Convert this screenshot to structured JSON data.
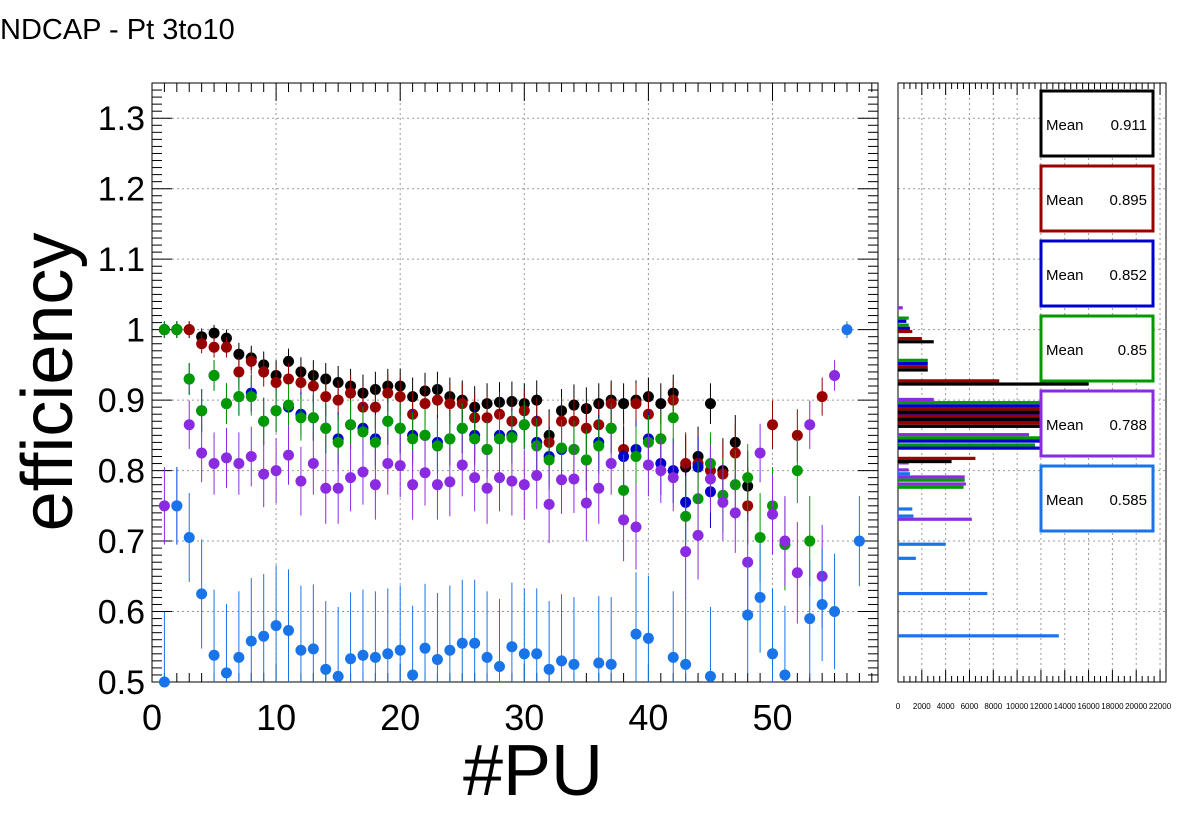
{
  "page": {
    "title": "NDCAP - Pt 3to10"
  },
  "chart_data": {
    "type": "scatter",
    "title": "NDCAP - Pt 3to10",
    "xlabel": "#PU",
    "ylabel": "efficiency",
    "xlim": [
      0,
      58.5
    ],
    "ylim": [
      0.5,
      1.35
    ],
    "xticks": [
      0,
      10,
      20,
      30,
      40,
      50
    ],
    "yticks": [
      0.5,
      0.6,
      0.7,
      0.8,
      0.9,
      1,
      1.1,
      1.2,
      1.3
    ],
    "ytick_labels": [
      "0.5",
      "0.6",
      "0.7",
      "0.8",
      "0.9",
      "1",
      "1.1",
      "1.2",
      "1.3"
    ],
    "grid": true,
    "series": [
      {
        "color": "#000000",
        "mean_label": "Mean",
        "mean": "0.911",
        "x": [
          1,
          2,
          3,
          4,
          5,
          6,
          7,
          8,
          9,
          10,
          11,
          12,
          13,
          14,
          15,
          16,
          17,
          18,
          19,
          20,
          21,
          22,
          23,
          24,
          25,
          26,
          27,
          28,
          29,
          30,
          31,
          32,
          33,
          34,
          35,
          36,
          37,
          38,
          39,
          40,
          41,
          42,
          43,
          44,
          45,
          46,
          47,
          48
        ],
        "y": [
          1.0,
          1.0,
          1.0,
          0.99,
          0.995,
          0.988,
          0.965,
          0.96,
          0.95,
          0.935,
          0.955,
          0.94,
          0.935,
          0.93,
          0.925,
          0.92,
          0.91,
          0.915,
          0.92,
          0.92,
          0.905,
          0.913,
          0.915,
          0.905,
          0.9,
          0.89,
          0.895,
          0.897,
          0.898,
          0.895,
          0.9,
          0.85,
          0.885,
          0.893,
          0.888,
          0.895,
          0.9,
          0.895,
          0.9,
          0.905,
          0.895,
          0.91,
          0.805,
          0.82,
          0.895,
          0.8,
          0.84,
          0.778
        ]
      },
      {
        "color": "#990000",
        "mean_label": "Mean",
        "mean": "0.895",
        "x": [
          1,
          2,
          3,
          4,
          5,
          6,
          7,
          8,
          9,
          10,
          11,
          12,
          13,
          14,
          15,
          16,
          17,
          18,
          19,
          20,
          21,
          22,
          23,
          24,
          25,
          26,
          27,
          28,
          29,
          30,
          31,
          32,
          33,
          34,
          35,
          36,
          37,
          38,
          39,
          40,
          41,
          42,
          43,
          44,
          45,
          46,
          47,
          48,
          50,
          52,
          54
        ],
        "y": [
          1.0,
          1.0,
          1.0,
          0.98,
          0.975,
          0.975,
          0.94,
          0.955,
          0.94,
          0.925,
          0.93,
          0.925,
          0.92,
          0.905,
          0.9,
          0.91,
          0.89,
          0.89,
          0.91,
          0.905,
          0.88,
          0.895,
          0.9,
          0.895,
          0.895,
          0.875,
          0.875,
          0.88,
          0.87,
          0.885,
          0.87,
          0.84,
          0.87,
          0.87,
          0.86,
          0.865,
          0.895,
          0.83,
          0.895,
          0.88,
          0.845,
          0.9,
          0.81,
          0.81,
          0.8,
          0.795,
          0.825,
          0.75,
          0.865,
          0.85,
          0.905
        ]
      },
      {
        "color": "#0000cc",
        "mean_label": "Mean",
        "mean": "0.852",
        "x": [
          1,
          2,
          3,
          4,
          5,
          6,
          7,
          8,
          9,
          10,
          11,
          12,
          13,
          14,
          15,
          16,
          17,
          18,
          19,
          20,
          21,
          22,
          23,
          24,
          25,
          26,
          27,
          28,
          29,
          30,
          31,
          32,
          33,
          34,
          35,
          36,
          37,
          38,
          39,
          40,
          41,
          42,
          43,
          44,
          45
        ],
        "y": [
          1.0,
          1.0,
          0.93,
          0.885,
          0.935,
          0.895,
          0.905,
          0.91,
          0.87,
          0.885,
          0.89,
          0.88,
          0.875,
          0.86,
          0.845,
          0.865,
          0.86,
          0.845,
          0.87,
          0.86,
          0.85,
          0.85,
          0.84,
          0.845,
          0.86,
          0.85,
          0.83,
          0.85,
          0.85,
          0.865,
          0.84,
          0.82,
          0.83,
          0.83,
          0.815,
          0.84,
          0.86,
          0.82,
          0.83,
          0.845,
          0.81,
          0.8,
          0.755,
          0.805,
          0.77
        ]
      },
      {
        "color": "#009900",
        "mean_label": "Mean",
        "mean": "0.85",
        "x": [
          1,
          2,
          3,
          4,
          5,
          6,
          7,
          8,
          9,
          10,
          11,
          12,
          13,
          14,
          15,
          16,
          17,
          18,
          19,
          20,
          21,
          22,
          23,
          24,
          25,
          26,
          27,
          28,
          29,
          30,
          31,
          32,
          33,
          34,
          35,
          36,
          37,
          38,
          39,
          40,
          41,
          42,
          43,
          44,
          45,
          46,
          47,
          48,
          49,
          50,
          51,
          52,
          53
        ],
        "y": [
          1.0,
          1.0,
          0.93,
          0.885,
          0.935,
          0.895,
          0.905,
          0.905,
          0.87,
          0.885,
          0.893,
          0.875,
          0.875,
          0.86,
          0.84,
          0.865,
          0.855,
          0.84,
          0.87,
          0.86,
          0.845,
          0.85,
          0.835,
          0.845,
          0.86,
          0.845,
          0.83,
          0.845,
          0.847,
          0.865,
          0.835,
          0.815,
          0.832,
          0.83,
          0.815,
          0.835,
          0.86,
          0.772,
          0.82,
          0.84,
          0.845,
          0.875,
          0.735,
          0.76,
          0.81,
          0.765,
          0.78,
          0.79,
          0.705,
          0.75,
          0.695,
          0.8,
          0.7
        ]
      },
      {
        "color": "#8a2be2",
        "mean_label": "Mean",
        "mean": "0.788",
        "x": [
          1,
          2,
          3,
          4,
          5,
          6,
          7,
          8,
          9,
          10,
          11,
          12,
          13,
          14,
          15,
          16,
          17,
          18,
          19,
          20,
          21,
          22,
          23,
          24,
          25,
          26,
          27,
          28,
          29,
          30,
          31,
          32,
          33,
          34,
          35,
          36,
          37,
          38,
          39,
          40,
          41,
          42,
          43,
          44,
          45,
          46,
          47,
          48,
          49,
          50,
          51,
          52,
          53,
          54,
          55
        ],
        "y": [
          0.75,
          0.75,
          0.865,
          0.825,
          0.81,
          0.818,
          0.81,
          0.82,
          0.795,
          0.8,
          0.822,
          0.785,
          0.81,
          0.775,
          0.775,
          0.79,
          0.798,
          0.78,
          0.81,
          0.807,
          0.78,
          0.797,
          0.78,
          0.784,
          0.808,
          0.79,
          0.775,
          0.79,
          0.785,
          0.78,
          0.793,
          0.752,
          0.787,
          0.788,
          0.754,
          0.775,
          0.81,
          0.73,
          0.72,
          0.808,
          0.8,
          0.79,
          0.685,
          0.708,
          0.788,
          0.755,
          0.74,
          0.67,
          0.825,
          0.738,
          0.7,
          0.655,
          0.865,
          0.65,
          0.935
        ]
      },
      {
        "color": "#1874e8",
        "mean_label": "Mean",
        "mean": "0.585",
        "x": [
          1,
          2,
          3,
          4,
          5,
          6,
          7,
          8,
          9,
          10,
          11,
          12,
          13,
          14,
          15,
          16,
          17,
          18,
          19,
          20,
          21,
          22,
          23,
          24,
          25,
          26,
          27,
          28,
          29,
          30,
          31,
          32,
          33,
          34,
          35,
          36,
          37,
          38,
          39,
          40,
          41,
          42,
          43,
          44,
          45,
          46,
          47,
          48,
          49,
          50,
          51,
          52,
          53,
          54,
          55,
          56,
          57
        ],
        "y": [
          0.5,
          0.75,
          0.705,
          0.625,
          0.538,
          0.513,
          0.535,
          0.558,
          0.565,
          0.58,
          0.573,
          0.545,
          0.547,
          0.518,
          0.508,
          0.533,
          0.538,
          0.535,
          0.54,
          0.545,
          0.51,
          0.548,
          0.532,
          0.545,
          0.555,
          0.555,
          0.535,
          0.522,
          0.55,
          0.54,
          0.54,
          0.518,
          0.53,
          0.525,
          0.49,
          0.527,
          0.525,
          0.49,
          0.568,
          0.562,
          0.48,
          0.535,
          0.525,
          0.49,
          0.508,
          0.49,
          0.45,
          0.595,
          0.62,
          0.54,
          0.51,
          0.45,
          0.59,
          0.61,
          0.6,
          1.0,
          0.7
        ]
      }
    ],
    "side_histogram": {
      "xticks": [
        0,
        2000,
        4000,
        6000,
        8000,
        10000,
        12000,
        14000,
        16000,
        18000,
        20000,
        22000
      ],
      "xlim": [
        0,
        22500
      ],
      "tick_labels_shown": [
        "0",
        "2000",
        "4000",
        "6000",
        "8000",
        "10000",
        "12000",
        "14000",
        "16000",
        "18000",
        "20000",
        "22000"
      ],
      "bins": [
        {
          "y": 0.555,
          "values": [
            0,
            0,
            0,
            0,
            0,
            13500
          ]
        },
        {
          "y": 0.615,
          "values": [
            0,
            0,
            0,
            0,
            0,
            7500
          ]
        },
        {
          "y": 0.665,
          "values": [
            0,
            0,
            0,
            0,
            0,
            1500
          ]
        },
        {
          "y": 0.685,
          "values": [
            0,
            0,
            0,
            0,
            0,
            4000
          ]
        },
        {
          "y": 0.725,
          "values": [
            0,
            0,
            0,
            0,
            6200,
            1300
          ]
        },
        {
          "y": 0.735,
          "values": [
            0,
            0,
            0,
            0,
            0,
            1200
          ]
        },
        {
          "y": 0.775,
          "values": [
            0,
            0,
            0,
            5500,
            5700,
            0
          ]
        },
        {
          "y": 0.785,
          "values": [
            0,
            0,
            0,
            5600,
            5600,
            1000
          ]
        },
        {
          "y": 0.795,
          "values": [
            0,
            0,
            0,
            0,
            900,
            0
          ]
        },
        {
          "y": 0.805,
          "values": [
            0,
            0,
            0,
            0,
            900,
            0
          ]
        },
        {
          "y": 0.825,
          "values": [
            4500,
            6500,
            0,
            0,
            0,
            0
          ]
        },
        {
          "y": 0.835,
          "values": [
            0,
            0,
            12000,
            11500,
            0,
            0
          ]
        },
        {
          "y": 0.845,
          "values": [
            0,
            0,
            12000,
            12500,
            11000,
            0
          ]
        },
        {
          "y": 0.875,
          "values": [
            12500,
            13500,
            13000,
            12500,
            0,
            0
          ]
        },
        {
          "y": 0.885,
          "values": [
            13000,
            13000,
            12500,
            13000,
            0,
            0
          ]
        },
        {
          "y": 0.895,
          "values": [
            12500,
            12500,
            12500,
            12000,
            3000,
            0
          ]
        },
        {
          "y": 0.935,
          "values": [
            16000,
            8500,
            0,
            0,
            0,
            0
          ]
        },
        {
          "y": 0.955,
          "values": [
            2500,
            2500,
            2500,
            2500,
            0,
            0
          ]
        },
        {
          "y": 0.995,
          "values": [
            3000,
            2000,
            0,
            0,
            0,
            0
          ]
        },
        {
          "y": 1.005,
          "values": [
            0,
            1200,
            1000,
            900,
            0,
            0
          ]
        },
        {
          "y": 1.015,
          "values": [
            0,
            0,
            700,
            900,
            0,
            0
          ]
        },
        {
          "y": 1.025,
          "values": [
            0,
            0,
            0,
            0,
            400,
            0
          ]
        }
      ]
    }
  }
}
